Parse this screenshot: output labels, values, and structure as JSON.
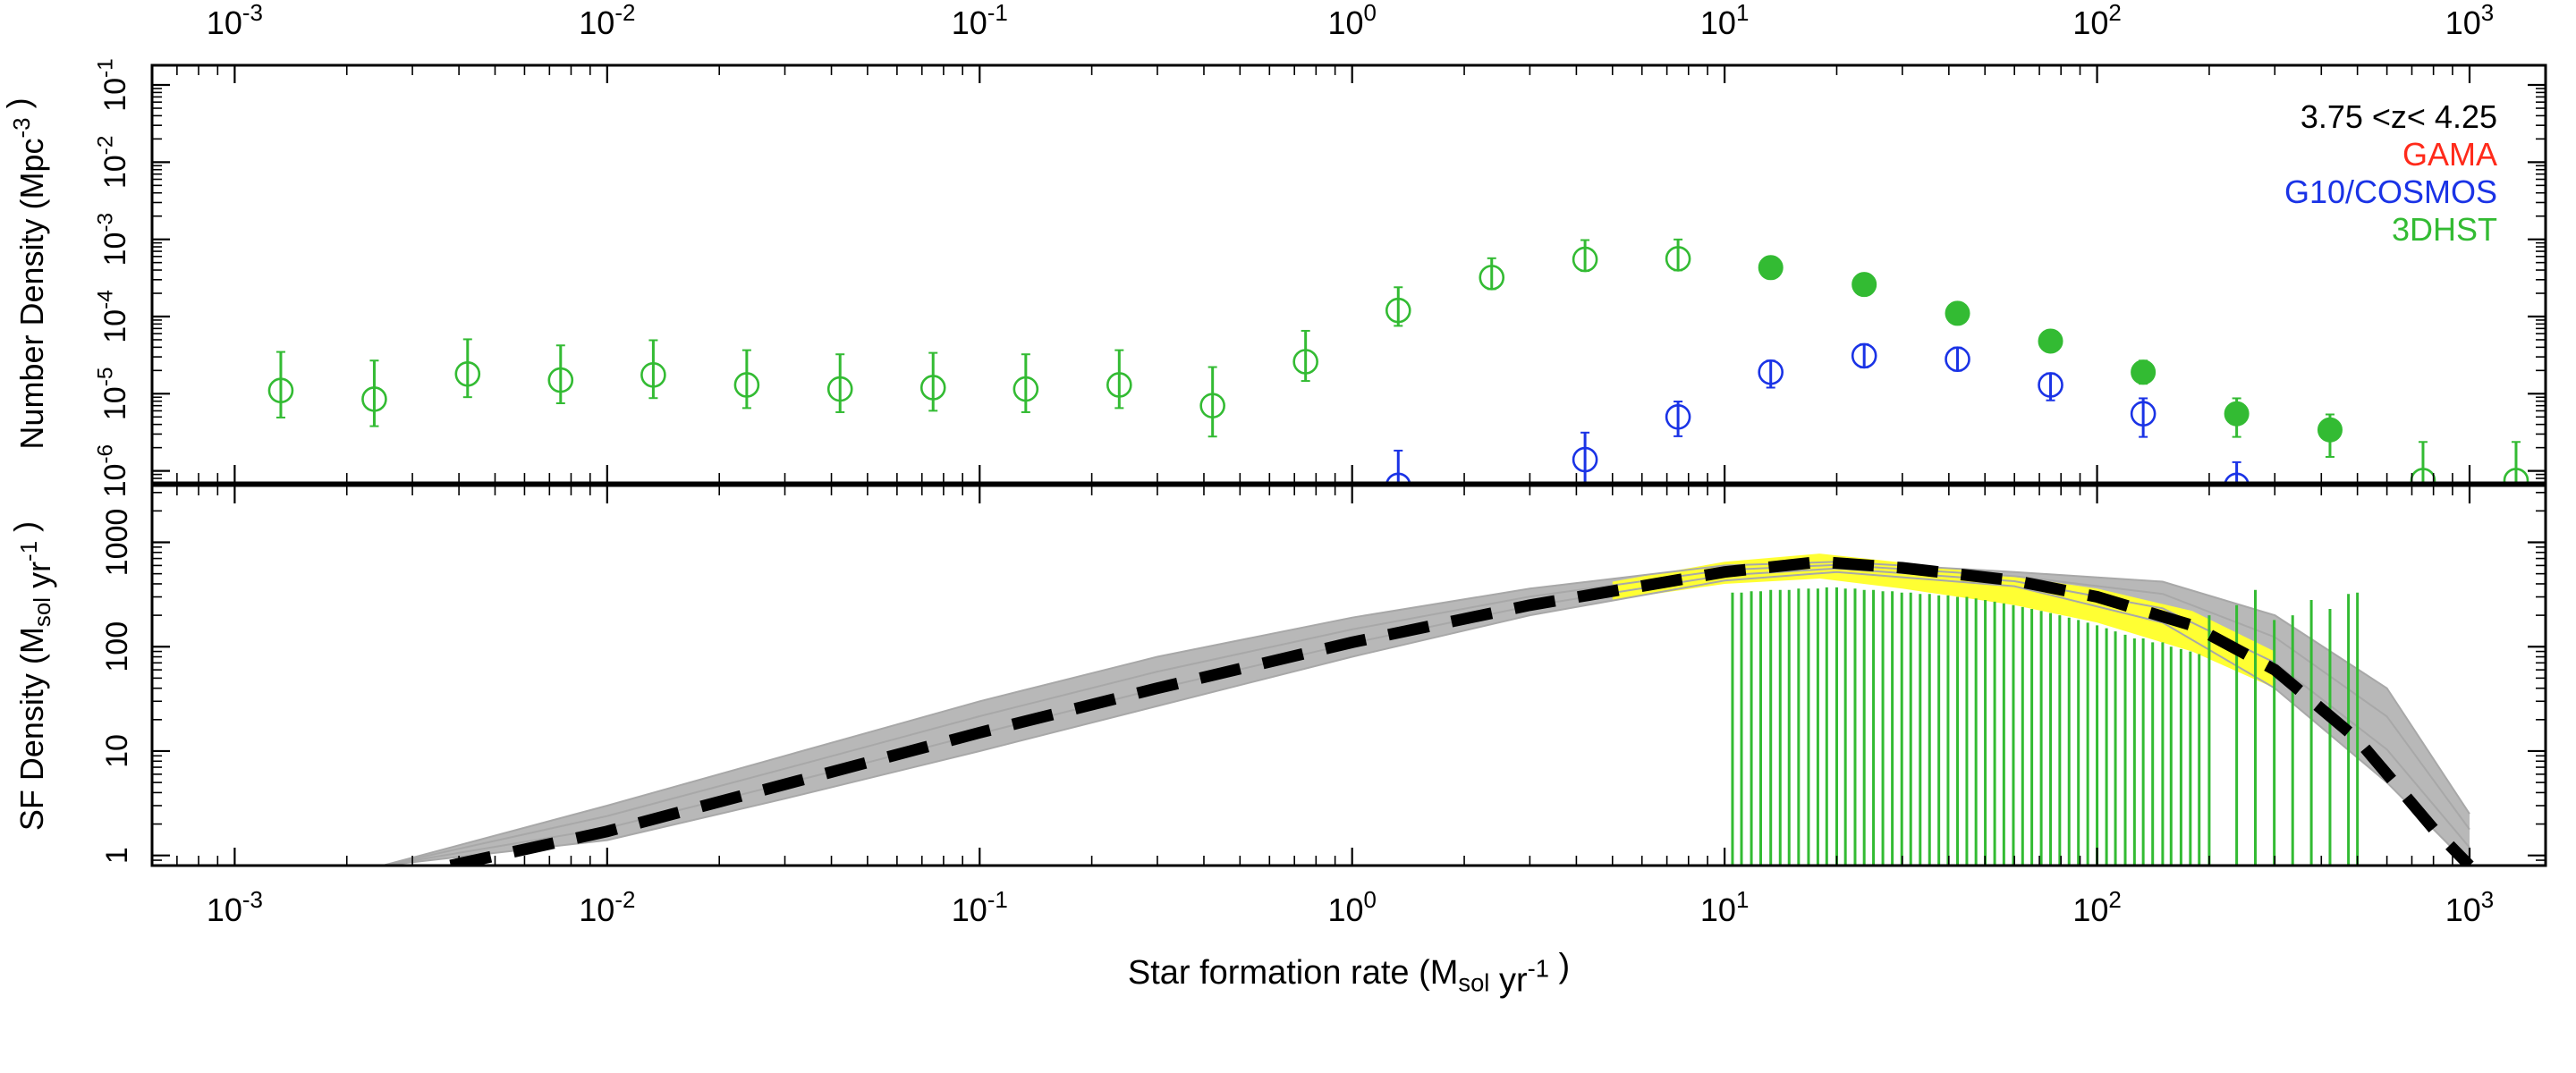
{
  "chart_data": [
    {
      "panel": "top",
      "type": "scatter",
      "x_scale": "log",
      "y_scale": "log",
      "xlim": [
        0.0006,
        1600
      ],
      "ylim": [
        7e-07,
        0.18
      ],
      "top_axis_tick_labels": [
        "10^-3",
        "10^-2",
        "10^-1",
        "10^0",
        "10^1",
        "10^2",
        "10^3"
      ],
      "y_tick_labels": [
        "10^-6",
        "10^-5",
        "10^-4",
        "10^-3",
        "10^-2",
        "10^-1"
      ],
      "ylabel": "Number Density (Mpc^-3 )",
      "legend": {
        "placement": "top-right",
        "title": "3.75 <z< 4.25",
        "entries": [
          {
            "label": "GAMA",
            "color": "#ff2a1a"
          },
          {
            "label": "G10/COSMOS",
            "color": "#1a33e6"
          },
          {
            "label": "3DHST",
            "color": "#33bb33"
          }
        ]
      },
      "series": [
        {
          "name": "3DHST",
          "color": "#33bb33",
          "marker": "open-circle",
          "points": [
            {
              "x": 0.00133,
              "y": 1.1e-05,
              "err_lo": 0.35,
              "err_hi": 0.5
            },
            {
              "x": 0.00237,
              "y": 8.5e-06,
              "err_lo": 0.35,
              "err_hi": 0.5
            },
            {
              "x": 0.00422,
              "y": 1.8e-05,
              "err_lo": 0.3,
              "err_hi": 0.45
            },
            {
              "x": 0.0075,
              "y": 1.5e-05,
              "err_lo": 0.3,
              "err_hi": 0.45
            },
            {
              "x": 0.0133,
              "y": 1.75e-05,
              "err_lo": 0.3,
              "err_hi": 0.45
            },
            {
              "x": 0.0237,
              "y": 1.3e-05,
              "err_lo": 0.3,
              "err_hi": 0.45
            },
            {
              "x": 0.0422,
              "y": 1.15e-05,
              "err_lo": 0.3,
              "err_hi": 0.45
            },
            {
              "x": 0.075,
              "y": 1.2e-05,
              "err_lo": 0.3,
              "err_hi": 0.45
            },
            {
              "x": 0.133,
              "y": 1.15e-05,
              "err_lo": 0.3,
              "err_hi": 0.45
            },
            {
              "x": 0.237,
              "y": 1.3e-05,
              "err_lo": 0.3,
              "err_hi": 0.45
            },
            {
              "x": 0.422,
              "y": 7e-06,
              "err_lo": 0.4,
              "err_hi": 0.5
            },
            {
              "x": 0.75,
              "y": 2.6e-05,
              "err_lo": 0.25,
              "err_hi": 0.4
            },
            {
              "x": 1.33,
              "y": 0.00012,
              "err_lo": 0.2,
              "err_hi": 0.3
            },
            {
              "x": 2.37,
              "y": 0.00032,
              "err_lo": 0.15,
              "err_hi": 0.25
            },
            {
              "x": 4.22,
              "y": 0.00055,
              "err_lo": 0.15,
              "err_hi": 0.25
            },
            {
              "x": 7.5,
              "y": 0.00056,
              "err_lo": 0.15,
              "err_hi": 0.25
            },
            {
              "x": 750,
              "y": 7.5e-07,
              "err_lo": 0.2,
              "err_hi": 0.5
            },
            {
              "x": 1333,
              "y": 7.5e-07,
              "err_lo": 0.2,
              "err_hi": 0.5
            }
          ]
        },
        {
          "name": "3DHST",
          "color": "#33bb33",
          "marker": "filled-circle",
          "points": [
            {
              "x": 13.3,
              "y": 0.00043,
              "err_lo": 0.1,
              "err_hi": 0.1
            },
            {
              "x": 23.7,
              "y": 0.00026,
              "err_lo": 0.1,
              "err_hi": 0.1
            },
            {
              "x": 42.2,
              "y": 0.00011,
              "err_lo": 0.1,
              "err_hi": 0.1
            },
            {
              "x": 75,
              "y": 4.8e-05,
              "err_lo": 0.1,
              "err_hi": 0.1
            },
            {
              "x": 133,
              "y": 1.9e-05,
              "err_lo": 0.15,
              "err_hi": 0.15
            },
            {
              "x": 237,
              "y": 5.5e-06,
              "err_lo": 0.3,
              "err_hi": 0.2
            },
            {
              "x": 422,
              "y": 3.4e-06,
              "err_lo": 0.35,
              "err_hi": 0.2
            }
          ]
        },
        {
          "name": "G10/COSMOS",
          "color": "#1a33e6",
          "marker": "open-circle",
          "points": [
            {
              "x": 1.33,
              "y": 6.5e-07,
              "err_lo": 0.1,
              "err_hi": 0.45
            },
            {
              "x": 4.22,
              "y": 1.4e-06,
              "err_lo": 0.3,
              "err_hi": 0.35
            },
            {
              "x": 7.5,
              "y": 5e-06,
              "err_lo": 0.25,
              "err_hi": 0.2
            },
            {
              "x": 13.3,
              "y": 1.9e-05,
              "err_lo": 0.2,
              "err_hi": 0.15
            },
            {
              "x": 23.7,
              "y": 3.1e-05,
              "err_lo": 0.15,
              "err_hi": 0.15
            },
            {
              "x": 42.2,
              "y": 2.8e-05,
              "err_lo": 0.15,
              "err_hi": 0.15
            },
            {
              "x": 75,
              "y": 1.3e-05,
              "err_lo": 0.2,
              "err_hi": 0.15
            },
            {
              "x": 133,
              "y": 5.5e-06,
              "err_lo": 0.3,
              "err_hi": 0.2
            },
            {
              "x": 237,
              "y": 6.5e-07,
              "err_lo": 0.1,
              "err_hi": 0.3
            }
          ]
        }
      ]
    },
    {
      "panel": "bottom",
      "type": "line",
      "x_scale": "log",
      "y_scale": "log",
      "xlim": [
        0.0006,
        1600
      ],
      "ylim": [
        0.8,
        3500
      ],
      "x_tick_labels": [
        "10^-3",
        "10^-2",
        "10^-1",
        "10^0",
        "10^1",
        "10^2",
        "10^3"
      ],
      "y_tick_labels": [
        "1",
        "10",
        "100",
        "1000"
      ],
      "xlabel": "Star formation rate (Msol yr^-1 )",
      "ylabel": "SF Density (Msol yr^-1 )",
      "series": [
        {
          "name": "best fit",
          "style": "dashed",
          "color": "#000000",
          "x": [
            0.0038,
            0.01,
            0.03,
            0.1,
            0.3,
            1,
            3,
            10,
            18,
            30,
            60,
            100,
            180,
            300,
            500,
            800,
            1000
          ],
          "y": [
            0.8,
            1.7,
            4.8,
            15,
            40,
            110,
            250,
            520,
            650,
            570,
            430,
            300,
            160,
            60,
            13,
            1.8,
            0.8
          ]
        },
        {
          "name": "uncertainty band (grey)",
          "style": "band",
          "color": "#b8b8b8",
          "x": [
            0.0025,
            0.01,
            0.03,
            0.1,
            0.3,
            1,
            3,
            10,
            20,
            60,
            150,
            300,
            600,
            1000
          ],
          "y_lower": [
            0.8,
            1.4,
            3.5,
            10,
            27,
            80,
            200,
            430,
            520,
            380,
            170,
            40,
            5,
            0.8
          ],
          "y_upper": [
            0.8,
            3.0,
            9,
            30,
            80,
            190,
            360,
            600,
            650,
            520,
            420,
            200,
            40,
            2.5
          ]
        },
        {
          "name": "uncertainty band (yellow)",
          "style": "band",
          "color": "#ffff33",
          "x": [
            5,
            10,
            18,
            30,
            60,
            100,
            180,
            300
          ],
          "y_lower": [
            280,
            400,
            450,
            360,
            250,
            170,
            90,
            40
          ],
          "y_upper": [
            420,
            650,
            780,
            640,
            470,
            360,
            220,
            90
          ]
        },
        {
          "name": "3DHST SFR density bins",
          "style": "vertical-lines",
          "color": "#33bb33",
          "x": [
            10.5,
            11.1,
            11.8,
            12.5,
            13.3,
            14.1,
            14.9,
            15.8,
            16.8,
            17.8,
            18.8,
            20.0,
            21.1,
            22.4,
            23.7,
            25.1,
            26.6,
            28.2,
            29.9,
            31.6,
            33.5,
            35.5,
            37.6,
            39.8,
            42.2,
            44.7,
            47.3,
            50.1,
            53.1,
            56.2,
            59.6,
            63.1,
            66.8,
            70.8,
            75.0,
            79.4,
            84.1,
            89.1,
            94.4,
            100,
            106,
            112,
            119,
            126,
            133,
            141,
            150,
            158,
            168,
            178,
            188,
            200,
            237,
            266,
            299,
            335,
            376,
            422,
            473,
            500
          ],
          "y": [
            330,
            330,
            340,
            340,
            350,
            350,
            350,
            360,
            360,
            360,
            370,
            370,
            360,
            360,
            350,
            350,
            340,
            340,
            330,
            330,
            320,
            320,
            310,
            310,
            300,
            300,
            290,
            280,
            270,
            260,
            250,
            240,
            230,
            220,
            210,
            200,
            190,
            180,
            170,
            160,
            150,
            140,
            130,
            120,
            120,
            110,
            110,
            100,
            95,
            90,
            85,
            200,
            250,
            350,
            180,
            200,
            280,
            230,
            320,
            330
          ]
        }
      ]
    }
  ]
}
